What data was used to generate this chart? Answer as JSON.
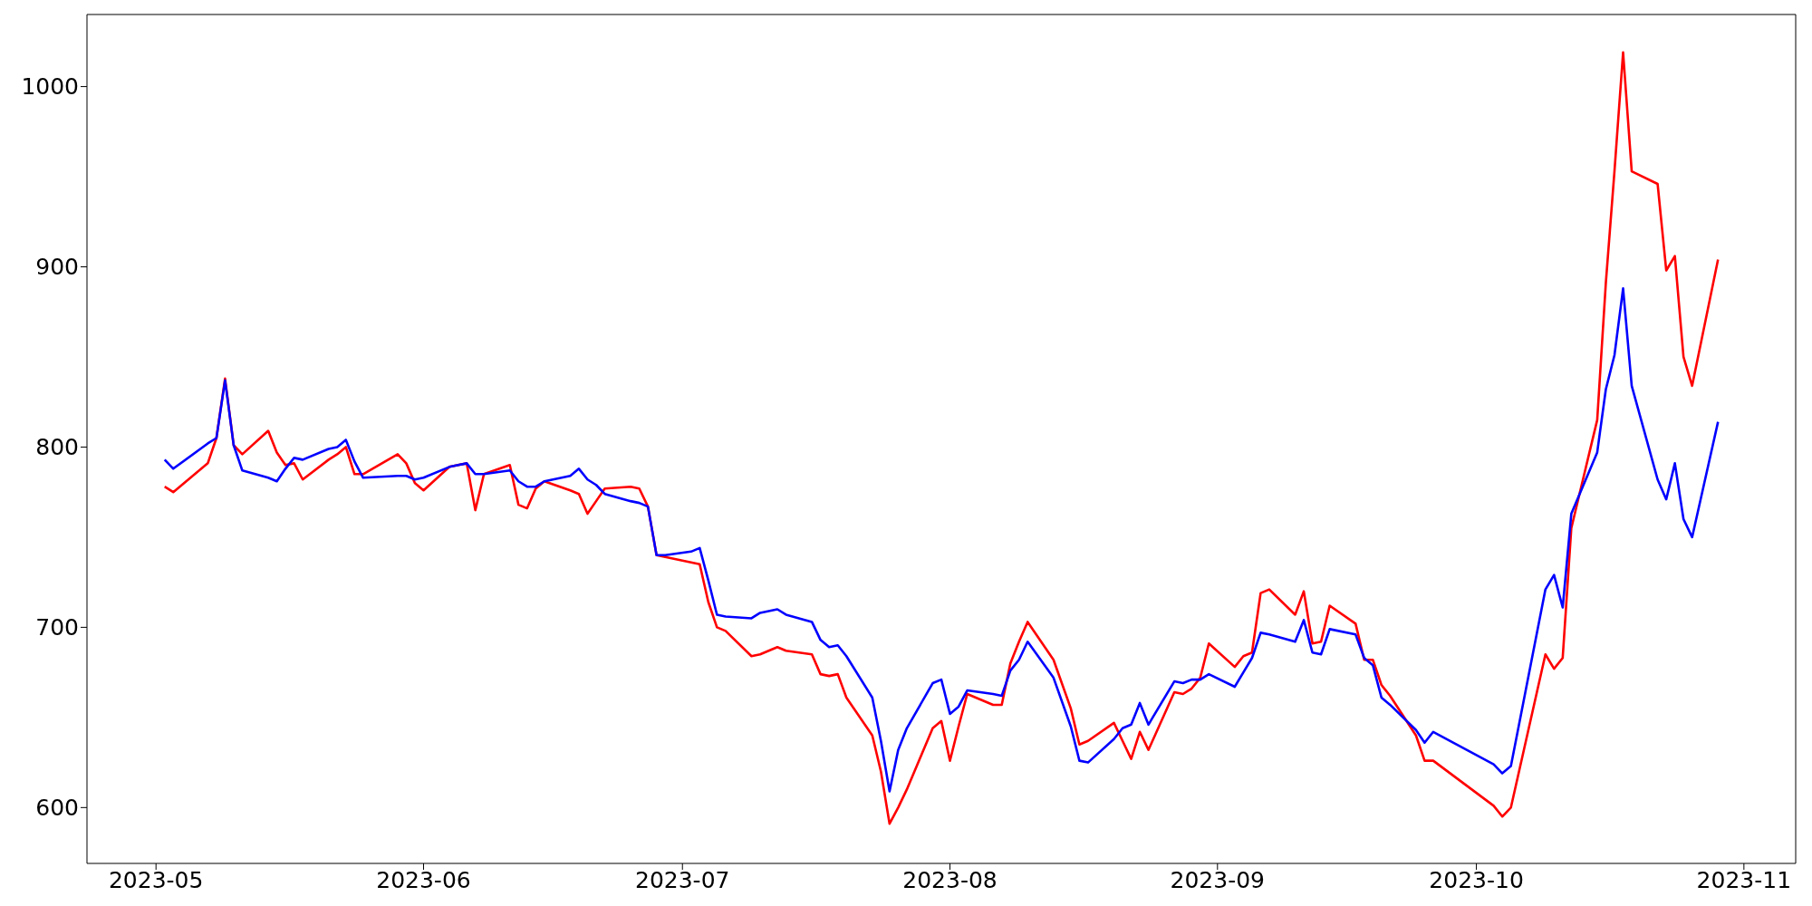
{
  "chart_data": {
    "type": "line",
    "x": [
      "2023-05-02",
      "2023-05-03",
      "2023-05-07",
      "2023-05-08",
      "2023-05-09",
      "2023-05-10",
      "2023-05-11",
      "2023-05-14",
      "2023-05-15",
      "2023-05-16",
      "2023-05-17",
      "2023-05-18",
      "2023-05-21",
      "2023-05-22",
      "2023-05-23",
      "2023-05-24",
      "2023-05-25",
      "2023-05-29",
      "2023-05-30",
      "2023-05-31",
      "2023-06-01",
      "2023-06-04",
      "2023-06-06",
      "2023-06-07",
      "2023-06-08",
      "2023-06-11",
      "2023-06-12",
      "2023-06-13",
      "2023-06-14",
      "2023-06-15",
      "2023-06-18",
      "2023-06-19",
      "2023-06-20",
      "2023-06-21",
      "2023-06-22",
      "2023-06-25",
      "2023-06-26",
      "2023-06-27",
      "2023-06-28",
      "2023-06-29",
      "2023-07-02",
      "2023-07-03",
      "2023-07-04",
      "2023-07-05",
      "2023-07-06",
      "2023-07-09",
      "2023-07-10",
      "2023-07-11",
      "2023-07-12",
      "2023-07-13",
      "2023-07-16",
      "2023-07-17",
      "2023-07-18",
      "2023-07-19",
      "2023-07-20",
      "2023-07-23",
      "2023-07-24",
      "2023-07-25",
      "2023-07-26",
      "2023-07-27",
      "2023-07-30",
      "2023-07-31",
      "2023-08-01",
      "2023-08-02",
      "2023-08-03",
      "2023-08-06",
      "2023-08-07",
      "2023-08-08",
      "2023-08-09",
      "2023-08-10",
      "2023-08-13",
      "2023-08-15",
      "2023-08-16",
      "2023-08-17",
      "2023-08-20",
      "2023-08-21",
      "2023-08-22",
      "2023-08-23",
      "2023-08-24",
      "2023-08-27",
      "2023-08-28",
      "2023-08-29",
      "2023-08-30",
      "2023-08-31",
      "2023-09-03",
      "2023-09-04",
      "2023-09-05",
      "2023-09-06",
      "2023-09-07",
      "2023-09-10",
      "2023-09-11",
      "2023-09-12",
      "2023-09-13",
      "2023-09-14",
      "2023-09-17",
      "2023-09-18",
      "2023-09-19",
      "2023-09-20",
      "2023-09-21",
      "2023-09-24",
      "2023-09-25",
      "2023-09-26",
      "2023-10-03",
      "2023-10-04",
      "2023-10-05",
      "2023-10-09",
      "2023-10-10",
      "2023-10-11",
      "2023-10-12",
      "2023-10-15",
      "2023-10-16",
      "2023-10-17",
      "2023-10-18",
      "2023-10-19",
      "2023-10-22",
      "2023-10-23",
      "2023-10-24",
      "2023-10-25",
      "2023-10-26",
      "2023-10-29"
    ],
    "series": [
      {
        "color": "#ff0000",
        "values": [
          778,
          775,
          791,
          805,
          838,
          801,
          796,
          809,
          797,
          790,
          791,
          782,
          793,
          796,
          800,
          785,
          785,
          796,
          791,
          780,
          776,
          789,
          791,
          765,
          785,
          790,
          768,
          766,
          777,
          781,
          776,
          774,
          763,
          770,
          777,
          778,
          777,
          767,
          740,
          739,
          736,
          735,
          714,
          700,
          698,
          684,
          685,
          687,
          689,
          687,
          685,
          674,
          673,
          674,
          661,
          640,
          620,
          591,
          600,
          610,
          644,
          648,
          626,
          645,
          663,
          657,
          657,
          680,
          692,
          703,
          682,
          655,
          635,
          637,
          647,
          637,
          627,
          642,
          632,
          664,
          663,
          666,
          672,
          691,
          678,
          684,
          686,
          719,
          721,
          707,
          720,
          691,
          692,
          712,
          702,
          682,
          682,
          668,
          662,
          640,
          626,
          626,
          601,
          595,
          600,
          685,
          677,
          683,
          755,
          815,
          891,
          953,
          1019,
          953,
          946,
          898,
          906,
          850,
          834,
          904
        ]
      },
      {
        "color": "#0000ff",
        "values": [
          793,
          788,
          802,
          805,
          837,
          801,
          787,
          783,
          781,
          788,
          794,
          793,
          799,
          800,
          804,
          792,
          783,
          784,
          784,
          782,
          783,
          789,
          791,
          785,
          785,
          787,
          781,
          778,
          778,
          781,
          784,
          788,
          782,
          779,
          774,
          770,
          769,
          767,
          740,
          740,
          742,
          744,
          726,
          707,
          706,
          705,
          708,
          709,
          710,
          707,
          703,
          693,
          689,
          690,
          684,
          661,
          637,
          609,
          632,
          644,
          669,
          671,
          652,
          656,
          665,
          663,
          662,
          676,
          682,
          692,
          672,
          645,
          626,
          625,
          638,
          644,
          646,
          658,
          646,
          670,
          669,
          671,
          671,
          674,
          667,
          675,
          683,
          697,
          696,
          692,
          704,
          686,
          685,
          699,
          696,
          683,
          679,
          661,
          657,
          643,
          636,
          642,
          624,
          619,
          623,
          721,
          729,
          711,
          763,
          797,
          832,
          851,
          888,
          834,
          782,
          771,
          791,
          760,
          750,
          814
        ]
      }
    ],
    "xlim": [
      "2023-04-23",
      "2023-11-07"
    ],
    "ylim": [
      569,
      1040
    ],
    "xticks": [
      {
        "value": "2023-05-01",
        "label": "2023-05"
      },
      {
        "value": "2023-06-01",
        "label": "2023-06"
      },
      {
        "value": "2023-07-01",
        "label": "2023-07"
      },
      {
        "value": "2023-08-01",
        "label": "2023-08"
      },
      {
        "value": "2023-09-01",
        "label": "2023-09"
      },
      {
        "value": "2023-10-01",
        "label": "2023-10"
      },
      {
        "value": "2023-11-01",
        "label": "2023-11"
      }
    ],
    "yticks": [
      600,
      700,
      800,
      900,
      1000
    ]
  }
}
